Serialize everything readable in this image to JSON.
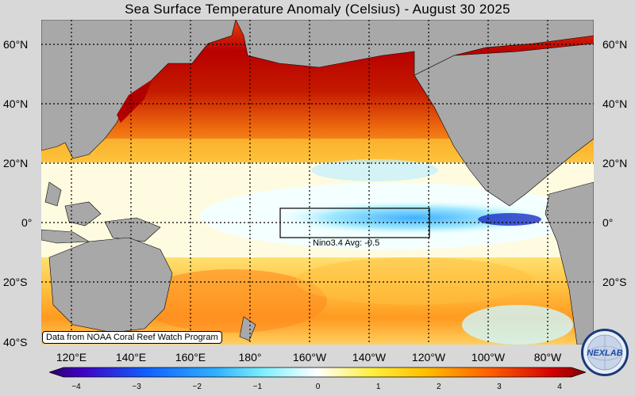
{
  "title": "Sea Surface Temperature Anomaly (Celsius) - August 30 2025",
  "lat_labels": [
    "60°N",
    "40°N",
    "20°N",
    "0°",
    "20°S",
    "40°S"
  ],
  "lon_labels": [
    "120°E",
    "140°E",
    "160°E",
    "180°",
    "160°W",
    "140°W",
    "120°W",
    "100°W",
    "80°W"
  ],
  "nino_label": "Nino3.4 Avg: -0.5",
  "credit": "Data from NOAA Coral Reef Watch Program",
  "colorbar": {
    "ticks": [
      "−4",
      "−3",
      "−2",
      "−1",
      "0",
      "1",
      "2",
      "3",
      "4"
    ],
    "min": -4,
    "max": 4
  },
  "logo_text": "NEXLAB",
  "colors": {
    "land": "#a8a8a8",
    "grid": "#000000",
    "background": "#d8d8d8"
  }
}
